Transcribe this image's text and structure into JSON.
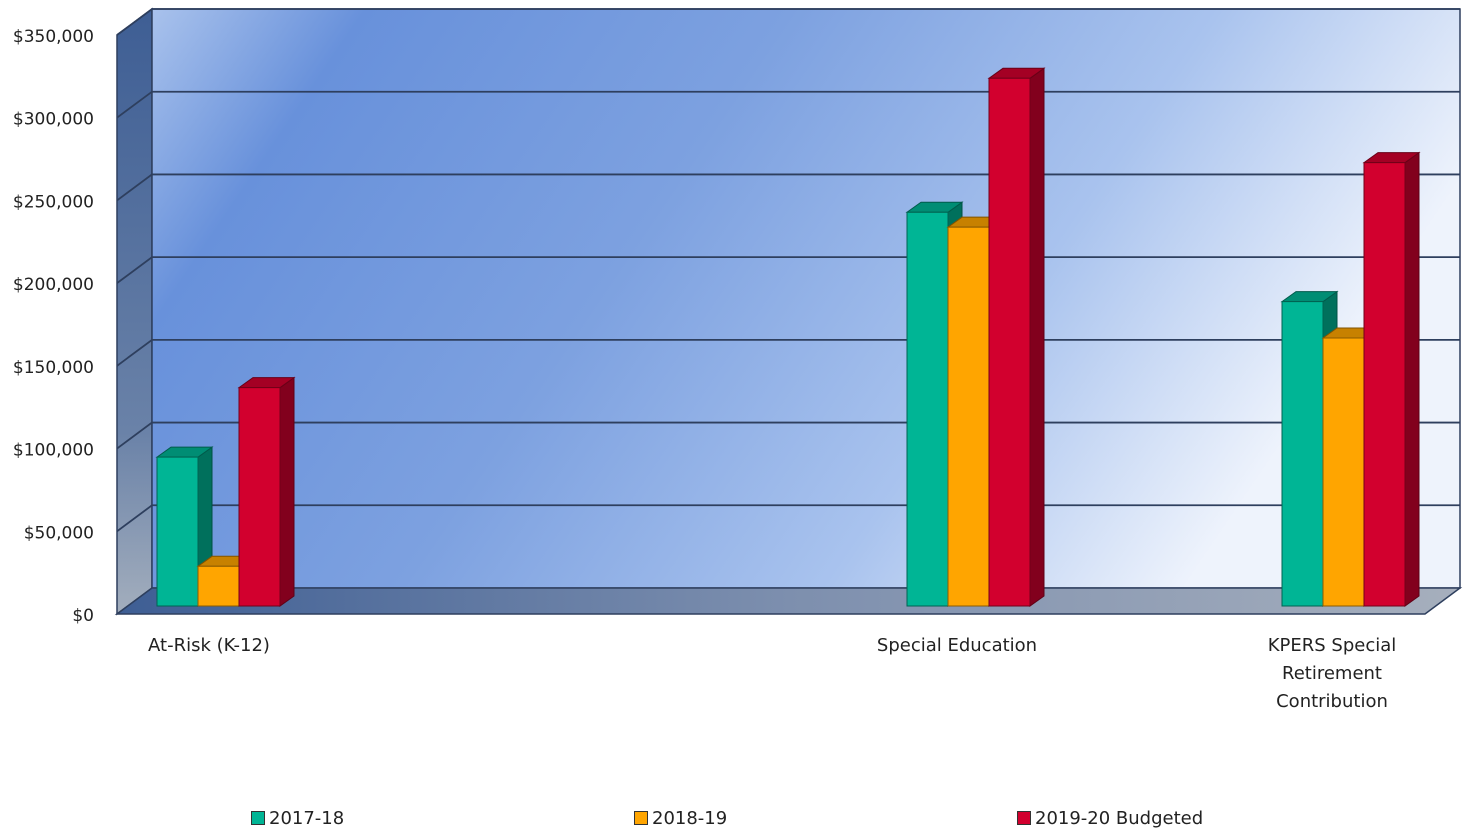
{
  "chart_data": {
    "type": "bar",
    "categories": [
      "At-Risk (K-12)",
      "Special Education",
      "KPERS Special Retirement Contribution"
    ],
    "category_lines": [
      [
        "At-Risk (K-12)"
      ],
      [
        "Special Education"
      ],
      [
        "KPERS Special",
        "Retirement",
        "Contribution"
      ]
    ],
    "series": [
      {
        "name": "2017-18",
        "values": [
          90000,
          238000,
          184000
        ],
        "color": "#00B595"
      },
      {
        "name": "2018-19",
        "values": [
          24000,
          229000,
          162000
        ],
        "color": "#FFA500"
      },
      {
        "name": "2019-20 Budgeted",
        "values": [
          132000,
          319000,
          268000
        ],
        "color": "#D2002E"
      }
    ],
    "ylim": [
      0,
      350000
    ],
    "yticks": [
      "$0",
      "$50,000",
      "$100,000",
      "$150,000",
      "$200,000",
      "$250,000",
      "$300,000",
      "$350,000"
    ],
    "ytick_values": [
      0,
      50000,
      100000,
      150000,
      200000,
      250000,
      300000,
      350000
    ],
    "grid": true,
    "legend_position": "bottom",
    "style": "3d-bar"
  },
  "colors": {
    "wall_light": "#EEF3FC",
    "wall_mid": "#8FB0E6",
    "wall_dark": "#6891DB",
    "side_wall": "#4A6FA5",
    "floor": "#8A96AA",
    "grid": "#2E3F5E"
  }
}
